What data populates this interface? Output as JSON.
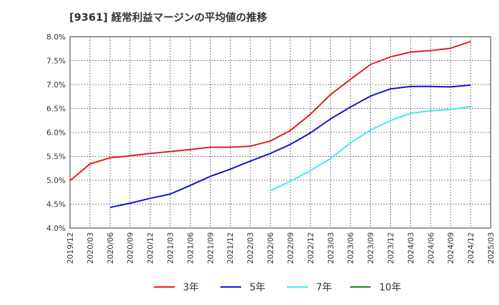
{
  "chart_data": {
    "type": "line",
    "title": "[9361]  経常利益マージンの平均値の推移",
    "x_tick_labels": [
      "2019/12",
      "2020/03",
      "2020/06",
      "2020/09",
      "2020/12",
      "2021/03",
      "2021/06",
      "2021/09",
      "2021/12",
      "2022/03",
      "2022/06",
      "2022/09",
      "2022/12",
      "2023/03",
      "2023/06",
      "2023/09",
      "2023/12",
      "2024/03",
      "2024/06",
      "2024/09",
      "2024/12",
      "2025/03"
    ],
    "y_tick_labels": [
      "4.0%",
      "4.5%",
      "5.0%",
      "5.5%",
      "6.0%",
      "6.5%",
      "7.0%",
      "7.5%",
      "8.0%"
    ],
    "ylim": [
      4.0,
      8.0
    ],
    "y_unit": "%",
    "grid": true,
    "legend_position": "bottom",
    "series": [
      {
        "name": "3年",
        "color": "#e31a1c",
        "x": [
          "2019/12",
          "2020/03",
          "2020/06",
          "2020/09",
          "2020/12",
          "2021/03",
          "2021/06",
          "2021/09",
          "2021/12",
          "2022/03",
          "2022/06",
          "2022/09",
          "2022/12",
          "2023/03",
          "2023/06",
          "2023/09",
          "2023/12",
          "2024/03",
          "2024/06",
          "2024/09",
          "2024/12"
        ],
        "values": [
          4.99,
          5.34,
          5.47,
          5.51,
          5.56,
          5.6,
          5.64,
          5.69,
          5.69,
          5.71,
          5.82,
          6.04,
          6.38,
          6.79,
          7.11,
          7.42,
          7.58,
          7.68,
          7.71,
          7.76,
          7.9
        ]
      },
      {
        "name": "5年",
        "color": "#1010c8",
        "x": [
          "2020/06",
          "2020/09",
          "2020/12",
          "2021/03",
          "2021/06",
          "2021/09",
          "2021/12",
          "2022/03",
          "2022/06",
          "2022/09",
          "2022/12",
          "2023/03",
          "2023/06",
          "2023/09",
          "2023/12",
          "2024/03",
          "2024/06",
          "2024/09",
          "2024/12"
        ],
        "values": [
          4.43,
          4.52,
          4.62,
          4.71,
          4.89,
          5.08,
          5.23,
          5.4,
          5.56,
          5.75,
          5.99,
          6.28,
          6.53,
          6.76,
          6.91,
          6.96,
          6.96,
          6.95,
          6.99
        ]
      },
      {
        "name": "7年",
        "color": "#3ce8f0",
        "x": [
          "2022/06",
          "2022/09",
          "2022/12",
          "2023/03",
          "2023/06",
          "2023/09",
          "2023/12",
          "2024/03",
          "2024/06",
          "2024/09",
          "2024/12"
        ],
        "values": [
          4.78,
          4.98,
          5.2,
          5.45,
          5.78,
          6.05,
          6.25,
          6.4,
          6.45,
          6.48,
          6.54
        ]
      },
      {
        "name": "10年",
        "color": "#1a8a1a",
        "x": [],
        "values": []
      }
    ]
  }
}
